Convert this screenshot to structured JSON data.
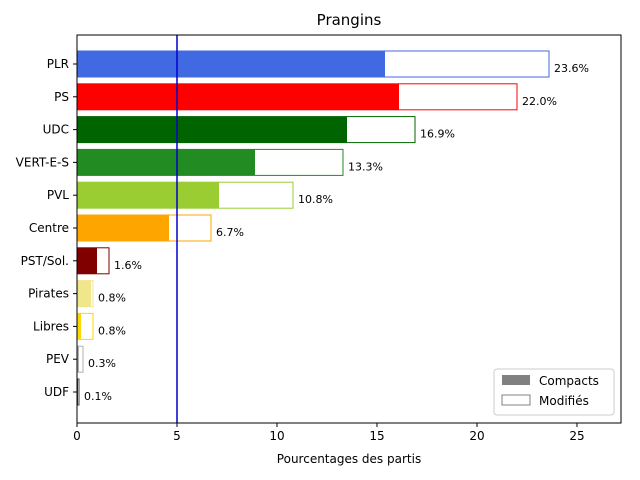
{
  "chart_data": {
    "type": "bar",
    "orientation": "horizontal",
    "title": "Prangins",
    "xlabel": "Pourcentages des partis",
    "ylabel": "",
    "xlim": [
      0,
      27.2
    ],
    "xticks": [
      0,
      5,
      10,
      15,
      20,
      25
    ],
    "threshold_line": 5,
    "threshold_color": "#0000cc",
    "categories": [
      "PLR",
      "PS",
      "UDC",
      "VERT-E-S",
      "PVL",
      "Centre",
      "PST/Sol.",
      "Pirates",
      "Libres",
      "PEV",
      "UDF"
    ],
    "colors": [
      "#4169e1",
      "#ff0000",
      "#006400",
      "#228b22",
      "#9acd32",
      "#ffa500",
      "#800000",
      "#f0e68c",
      "#ffd700",
      "#b0b0b0",
      "#404040"
    ],
    "series": [
      {
        "name": "Compacts",
        "values": [
          15.4,
          16.1,
          13.5,
          8.9,
          7.1,
          4.6,
          1.0,
          0.7,
          0.2,
          0.1,
          0.05
        ]
      },
      {
        "name": "Modifiés",
        "values": [
          23.6,
          22.0,
          16.9,
          13.3,
          10.8,
          6.7,
          1.6,
          0.8,
          0.8,
          0.3,
          0.1
        ]
      }
    ],
    "value_labels": [
      "23.6%",
      "22.0%",
      "16.9%",
      "13.3%",
      "10.8%",
      "6.7%",
      "1.6%",
      "0.8%",
      "0.8%",
      "0.3%",
      "0.1%"
    ],
    "legend": {
      "position": "bottom-right",
      "entries": [
        {
          "label": "Compacts",
          "style": "filled",
          "color": "#808080"
        },
        {
          "label": "Modifiés",
          "style": "outline",
          "color": "#808080"
        }
      ]
    },
    "grid": false
  }
}
